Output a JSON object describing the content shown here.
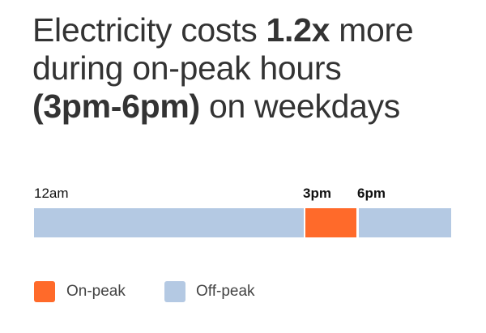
{
  "header": {
    "title_lines": [
      [
        {
          "text": "Electricity costs ",
          "bold": false
        },
        {
          "text": "1.2x",
          "bold": true
        },
        {
          "text": " more",
          "bold": false
        }
      ],
      [
        {
          "text": "during on-peak hours",
          "bold": false
        }
      ],
      [
        {
          "text": "(3pm-6pm)",
          "bold": true
        },
        {
          "text": " on weekdays",
          "bold": false
        }
      ]
    ]
  },
  "timeline": {
    "labels": [
      {
        "text": "12am",
        "bold": false
      },
      {
        "text": "3pm",
        "bold": true
      },
      {
        "text": "6pm",
        "bold": true
      }
    ],
    "on_peak_color": "#ff6a2a",
    "off_peak_color": "#b4c9e3"
  },
  "legend": {
    "items": [
      "On-peak",
      "Off-peak"
    ]
  }
}
